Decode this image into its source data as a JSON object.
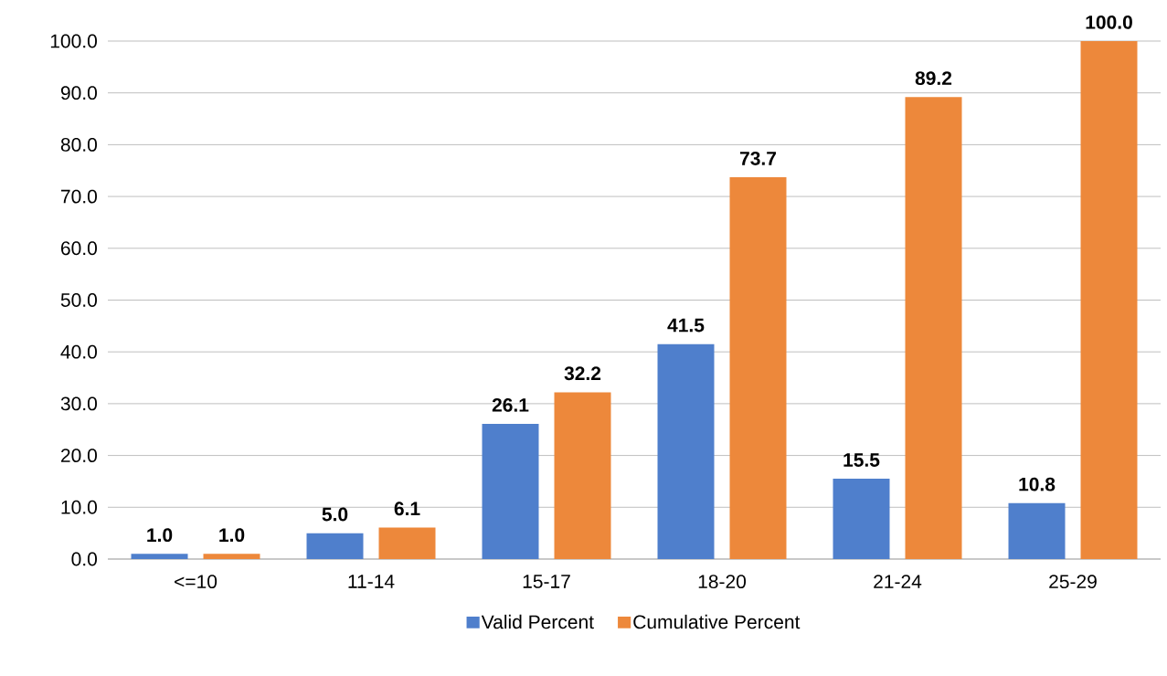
{
  "chart_data": {
    "type": "bar",
    "categories": [
      "<=10",
      "11-14",
      "15-17",
      "18-20",
      "21-24",
      "25-29"
    ],
    "series": [
      {
        "name": "Valid Percent",
        "color": "#4f7fcc",
        "values": [
          1.0,
          5.0,
          26.1,
          41.5,
          15.5,
          10.8
        ],
        "value_labels": [
          "1.0",
          "5.0",
          "26.1",
          "41.5",
          "15.5",
          "10.8"
        ]
      },
      {
        "name": "Cumulative Percent",
        "color": "#ed883b",
        "values": [
          1.0,
          6.1,
          32.2,
          73.7,
          89.2,
          100.0
        ],
        "value_labels": [
          "1.0",
          "6.1",
          "32.2",
          "73.7",
          "89.2",
          "100.0"
        ]
      }
    ],
    "ylim": [
      0,
      100
    ],
    "yticks": [
      {
        "value": 0,
        "label": "0.0"
      },
      {
        "value": 10,
        "label": "10.0"
      },
      {
        "value": 20,
        "label": "20.0"
      },
      {
        "value": 30,
        "label": "30.0"
      },
      {
        "value": 40,
        "label": "40.0"
      },
      {
        "value": 50,
        "label": "50.0"
      },
      {
        "value": 60,
        "label": "60.0"
      },
      {
        "value": 70,
        "label": "70.0"
      },
      {
        "value": 80,
        "label": "80.0"
      },
      {
        "value": 90,
        "label": "90.0"
      },
      {
        "value": 100,
        "label": "100.0"
      }
    ],
    "grid": "y",
    "legend": "bottom"
  }
}
